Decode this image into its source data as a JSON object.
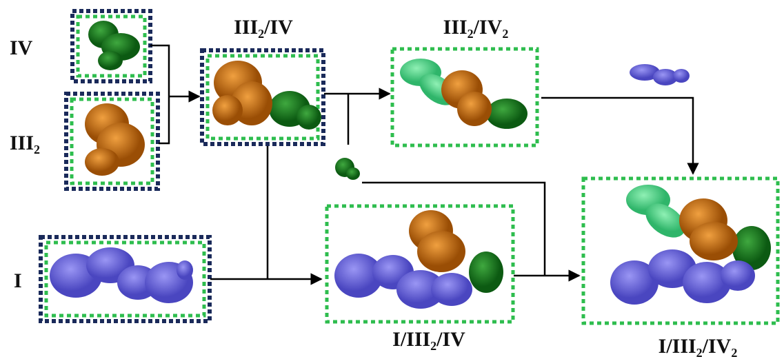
{
  "nodes": [
    {
      "label": "IV"
    },
    {
      "label": "III₂"
    },
    {
      "label": "I"
    },
    {
      "label": "III₂/IV"
    },
    {
      "label": "III₂/IV₂"
    },
    {
      "label": "I/III₂/IV"
    },
    {
      "label": "I/III₂/IV₂"
    }
  ]
}
